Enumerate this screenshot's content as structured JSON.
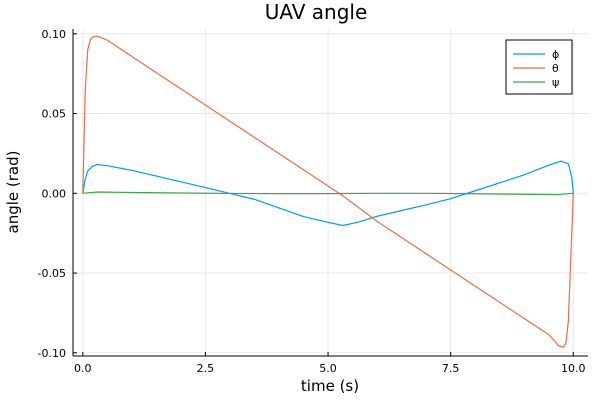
{
  "chart_data": {
    "type": "line",
    "title": "UAV angle",
    "xlabel": "time (s)",
    "ylabel": "angle (rad)",
    "xlim": [
      -0.2,
      10.3
    ],
    "ylim": [
      -0.102,
      0.103
    ],
    "xticks": [
      0.0,
      2.5,
      5.0,
      7.5,
      10.0
    ],
    "xtick_labels": [
      "0.0",
      "2.5",
      "5.0",
      "7.5",
      "10.0"
    ],
    "yticks": [
      -0.1,
      -0.05,
      0.0,
      0.05,
      0.1
    ],
    "ytick_labels": [
      "-0.10",
      "-0.05",
      "0.00",
      "0.05",
      "0.10"
    ],
    "grid": true,
    "legend_position": "top-right",
    "series": [
      {
        "name": "ϕ",
        "color": "#009AFA",
        "x": [
          0.0,
          0.05,
          0.1,
          0.2,
          0.3,
          0.5,
          1.0,
          1.5,
          2.0,
          2.5,
          3.0,
          3.5,
          4.0,
          4.5,
          5.0,
          5.3,
          5.6,
          6.0,
          6.5,
          7.0,
          7.5,
          8.0,
          8.5,
          9.0,
          9.5,
          9.75,
          9.9,
          9.97,
          10.0
        ],
        "y": [
          0.0,
          0.009,
          0.014,
          0.017,
          0.018,
          0.0173,
          0.0144,
          0.0108,
          0.0072,
          0.0036,
          -0.0001,
          -0.0038,
          -0.0092,
          -0.0146,
          -0.0182,
          -0.0202,
          -0.0182,
          -0.0144,
          -0.0108,
          -0.0072,
          -0.0034,
          0.0016,
          0.0066,
          0.0116,
          0.0176,
          0.0202,
          0.0185,
          0.01,
          0.0
        ]
      },
      {
        "name": "θ",
        "color": "#E36F47",
        "x": [
          0.0,
          0.05,
          0.1,
          0.15,
          0.2,
          0.3,
          0.5,
          1.0,
          2.0,
          3.0,
          4.0,
          5.0,
          5.3,
          6.0,
          7.0,
          8.0,
          9.0,
          9.5,
          9.7,
          9.8,
          9.85,
          9.9,
          9.95,
          10.0
        ],
        "y": [
          0.0,
          0.065,
          0.09,
          0.096,
          0.098,
          0.0985,
          0.096,
          0.0858,
          0.0655,
          0.0452,
          0.0249,
          0.0046,
          -0.0015,
          -0.0176,
          -0.0379,
          -0.0582,
          -0.0785,
          -0.0886,
          -0.0955,
          -0.0965,
          -0.094,
          -0.08,
          -0.04,
          0.0
        ]
      },
      {
        "name": "ψ",
        "color": "#3EA44E",
        "x": [
          0.0,
          0.3,
          1.0,
          2.0,
          3.0,
          4.0,
          5.0,
          6.0,
          7.0,
          8.0,
          9.0,
          9.7,
          10.0
        ],
        "y": [
          0.0,
          0.0008,
          0.0005,
          0.0002,
          -0.0001,
          -0.0002,
          -0.0002,
          0.0,
          0.0,
          -0.0003,
          -0.0006,
          -0.0008,
          0.0
        ]
      }
    ]
  }
}
